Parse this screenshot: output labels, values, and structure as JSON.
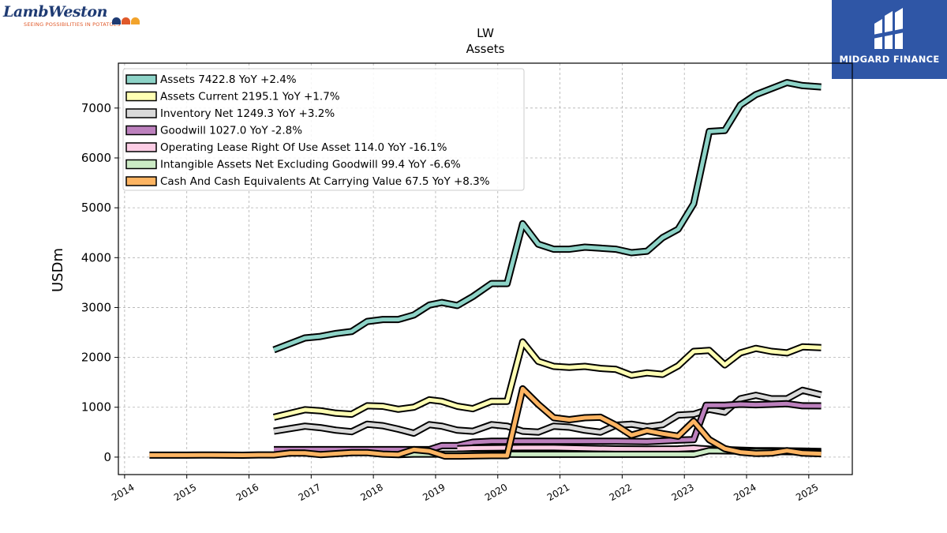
{
  "brand_left": {
    "wordmark": "LambWeston",
    "tagline": "SEEING POSSIBILITIES IN POTATOES",
    "dot_colors": [
      "#1f3b73",
      "#e0592a",
      "#f2a32b"
    ],
    "mark_icon": "lamb-weston-logo"
  },
  "brand_right": {
    "name": "MIDGARD FINANCE",
    "background": "#2f56a6",
    "mark_icon": "midgard-logo"
  },
  "chart_data": {
    "type": "line",
    "title": "LW",
    "subtitle": "Assets",
    "xlabel": "",
    "ylabel": "USDm",
    "xlim": [
      2013.9,
      2025.7
    ],
    "ylim": [
      -350,
      7900
    ],
    "x_ticks": [
      "2014",
      "2015",
      "2016",
      "2017",
      "2018",
      "2019",
      "2020",
      "2021",
      "2022",
      "2023",
      "2024",
      "2025"
    ],
    "y_ticks": [
      0,
      1000,
      2000,
      3000,
      4000,
      5000,
      6000,
      7000
    ],
    "grid": true,
    "legend_position": "top-left",
    "series": [
      {
        "name": "Assets",
        "legend": "Assets  7422.8 YoY +2.4%",
        "color": "#8dd3c7",
        "points": [
          [
            2016.4,
            2150
          ],
          [
            2016.9,
            2390
          ],
          [
            2017.15,
            2420
          ],
          [
            2017.4,
            2480
          ],
          [
            2017.65,
            2520
          ],
          [
            2017.9,
            2720
          ],
          [
            2018.15,
            2760
          ],
          [
            2018.4,
            2760
          ],
          [
            2018.65,
            2850
          ],
          [
            2018.9,
            3050
          ],
          [
            2019.1,
            3100
          ],
          [
            2019.35,
            3040
          ],
          [
            2019.6,
            3220
          ],
          [
            2019.9,
            3480
          ],
          [
            2020.15,
            3480
          ],
          [
            2020.4,
            4680
          ],
          [
            2020.65,
            4270
          ],
          [
            2020.9,
            4170
          ],
          [
            2021.15,
            4170
          ],
          [
            2021.4,
            4210
          ],
          [
            2021.65,
            4190
          ],
          [
            2021.9,
            4170
          ],
          [
            2022.15,
            4100
          ],
          [
            2022.4,
            4130
          ],
          [
            2022.65,
            4400
          ],
          [
            2022.9,
            4570
          ],
          [
            2023.15,
            5080
          ],
          [
            2023.4,
            6530
          ],
          [
            2023.65,
            6550
          ],
          [
            2023.9,
            7060
          ],
          [
            2024.15,
            7270
          ],
          [
            2024.4,
            7390
          ],
          [
            2024.65,
            7510
          ],
          [
            2024.9,
            7450
          ],
          [
            2025.2,
            7423
          ]
        ]
      },
      {
        "name": "Assets Current",
        "legend": "Assets Current  2195.1 YoY +1.7%",
        "color": "#ffffb3",
        "points": [
          [
            2016.4,
            800
          ],
          [
            2016.9,
            950
          ],
          [
            2017.15,
            930
          ],
          [
            2017.4,
            880
          ],
          [
            2017.65,
            860
          ],
          [
            2017.9,
            1030
          ],
          [
            2018.15,
            1020
          ],
          [
            2018.4,
            960
          ],
          [
            2018.65,
            1000
          ],
          [
            2018.9,
            1150
          ],
          [
            2019.1,
            1120
          ],
          [
            2019.35,
            1020
          ],
          [
            2019.6,
            970
          ],
          [
            2019.9,
            1120
          ],
          [
            2020.15,
            1120
          ],
          [
            2020.4,
            2310
          ],
          [
            2020.65,
            1920
          ],
          [
            2020.9,
            1820
          ],
          [
            2021.15,
            1800
          ],
          [
            2021.4,
            1820
          ],
          [
            2021.65,
            1780
          ],
          [
            2021.9,
            1760
          ],
          [
            2022.15,
            1640
          ],
          [
            2022.4,
            1690
          ],
          [
            2022.65,
            1660
          ],
          [
            2022.9,
            1830
          ],
          [
            2023.15,
            2120
          ],
          [
            2023.4,
            2140
          ],
          [
            2023.65,
            1850
          ],
          [
            2023.9,
            2090
          ],
          [
            2024.15,
            2180
          ],
          [
            2024.4,
            2120
          ],
          [
            2024.65,
            2090
          ],
          [
            2024.9,
            2210
          ],
          [
            2025.2,
            2195
          ]
        ]
      },
      {
        "name": "Inventory Net",
        "legend": "Inventory Net  1249.3 YoY +3.2%",
        "color": "#d9d9d9",
        "points": [
          [
            2016.4,
            520
          ],
          [
            2016.9,
            620
          ],
          [
            2017.15,
            590
          ],
          [
            2017.4,
            540
          ],
          [
            2017.65,
            510
          ],
          [
            2017.9,
            660
          ],
          [
            2018.15,
            630
          ],
          [
            2018.4,
            560
          ],
          [
            2018.65,
            480
          ],
          [
            2018.9,
            650
          ],
          [
            2019.1,
            620
          ],
          [
            2019.35,
            540
          ],
          [
            2019.6,
            520
          ],
          [
            2019.9,
            650
          ],
          [
            2020.15,
            620
          ],
          [
            2020.4,
            520
          ],
          [
            2020.65,
            500
          ],
          [
            2020.9,
            620
          ],
          [
            2021.15,
            600
          ],
          [
            2021.4,
            540
          ],
          [
            2021.65,
            500
          ],
          [
            2021.9,
            640
          ],
          [
            2022.15,
            660
          ],
          [
            2022.4,
            610
          ],
          [
            2022.65,
            650
          ],
          [
            2022.9,
            840
          ],
          [
            2023.15,
            860
          ],
          [
            2023.4,
            960
          ],
          [
            2023.65,
            900
          ],
          [
            2023.9,
            1170
          ],
          [
            2024.15,
            1240
          ],
          [
            2024.4,
            1170
          ],
          [
            2024.65,
            1170
          ],
          [
            2024.9,
            1340
          ],
          [
            2025.2,
            1249
          ]
        ]
      },
      {
        "name": "Goodwill",
        "legend": "Goodwill  1027.0 YoY -2.8%",
        "color": "#bc80bd",
        "points": [
          [
            2016.4,
            150
          ],
          [
            2016.9,
            150
          ],
          [
            2017.4,
            150
          ],
          [
            2017.9,
            150
          ],
          [
            2018.4,
            150
          ],
          [
            2018.9,
            150
          ],
          [
            2019.1,
            230
          ],
          [
            2019.35,
            230
          ],
          [
            2019.6,
            300
          ],
          [
            2019.9,
            320
          ],
          [
            2020.4,
            320
          ],
          [
            2020.9,
            320
          ],
          [
            2021.4,
            320
          ],
          [
            2021.9,
            320
          ],
          [
            2022.4,
            310
          ],
          [
            2022.9,
            340
          ],
          [
            2023.15,
            350
          ],
          [
            2023.35,
            1040
          ],
          [
            2023.65,
            1040
          ],
          [
            2023.9,
            1060
          ],
          [
            2024.15,
            1050
          ],
          [
            2024.4,
            1060
          ],
          [
            2024.65,
            1070
          ],
          [
            2024.9,
            1030
          ],
          [
            2025.2,
            1027
          ]
        ]
      },
      {
        "name": "Operating Lease Right Of Use Asset",
        "legend": "Operating Lease Right Of Use Asset  114.0 YoY -16.1%",
        "color": "#fccde5",
        "points": [
          [
            2019.35,
            170
          ],
          [
            2019.6,
            180
          ],
          [
            2019.9,
            185
          ],
          [
            2020.4,
            190
          ],
          [
            2020.9,
            190
          ],
          [
            2021.4,
            175
          ],
          [
            2021.9,
            165
          ],
          [
            2022.4,
            160
          ],
          [
            2022.9,
            165
          ],
          [
            2023.15,
            180
          ],
          [
            2023.4,
            160
          ],
          [
            2023.65,
            150
          ],
          [
            2023.9,
            140
          ],
          [
            2024.15,
            130
          ],
          [
            2024.4,
            130
          ],
          [
            2024.65,
            125
          ],
          [
            2024.9,
            120
          ],
          [
            2025.2,
            114
          ]
        ]
      },
      {
        "name": "Intangible Assets Net Excluding Goodwill",
        "legend": "Intangible Assets Net Excluding Goodwill  99.4 YoY -6.6%",
        "color": "#ccebc5",
        "points": [
          [
            2018.4,
            50
          ],
          [
            2018.65,
            60
          ],
          [
            2018.9,
            60
          ],
          [
            2019.35,
            60
          ],
          [
            2019.9,
            60
          ],
          [
            2020.4,
            55
          ],
          [
            2020.9,
            55
          ],
          [
            2021.4,
            55
          ],
          [
            2021.9,
            55
          ],
          [
            2022.4,
            55
          ],
          [
            2022.9,
            55
          ],
          [
            2023.15,
            55
          ],
          [
            2023.4,
            130
          ],
          [
            2023.65,
            125
          ],
          [
            2023.9,
            120
          ],
          [
            2024.15,
            115
          ],
          [
            2024.4,
            112
          ],
          [
            2024.65,
            110
          ],
          [
            2024.9,
            105
          ],
          [
            2025.2,
            99
          ]
        ]
      },
      {
        "name": "Cash And Cash Equivalents At Carrying Value",
        "legend": "Cash And Cash Equivalents At Carrying Value  67.5 YoY +8.3%",
        "color": "#fdb462",
        "points": [
          [
            2014.4,
            40
          ],
          [
            2015.0,
            40
          ],
          [
            2015.4,
            42
          ],
          [
            2015.9,
            38
          ],
          [
            2016.15,
            45
          ],
          [
            2016.4,
            45
          ],
          [
            2016.65,
            80
          ],
          [
            2016.9,
            80
          ],
          [
            2017.15,
            50
          ],
          [
            2017.4,
            70
          ],
          [
            2017.65,
            90
          ],
          [
            2017.9,
            90
          ],
          [
            2018.15,
            60
          ],
          [
            2018.4,
            50
          ],
          [
            2018.65,
            150
          ],
          [
            2018.9,
            120
          ],
          [
            2019.15,
            20
          ],
          [
            2019.4,
            20
          ],
          [
            2019.65,
            25
          ],
          [
            2019.9,
            30
          ],
          [
            2020.15,
            30
          ],
          [
            2020.4,
            1370
          ],
          [
            2020.65,
            1060
          ],
          [
            2020.9,
            790
          ],
          [
            2021.15,
            750
          ],
          [
            2021.4,
            790
          ],
          [
            2021.65,
            800
          ],
          [
            2021.9,
            640
          ],
          [
            2022.15,
            440
          ],
          [
            2022.4,
            530
          ],
          [
            2022.65,
            470
          ],
          [
            2022.9,
            420
          ],
          [
            2023.15,
            720
          ],
          [
            2023.4,
            350
          ],
          [
            2023.65,
            170
          ],
          [
            2023.9,
            100
          ],
          [
            2024.15,
            75
          ],
          [
            2024.4,
            80
          ],
          [
            2024.65,
            130
          ],
          [
            2024.9,
            80
          ],
          [
            2025.2,
            67.5
          ]
        ]
      }
    ]
  }
}
